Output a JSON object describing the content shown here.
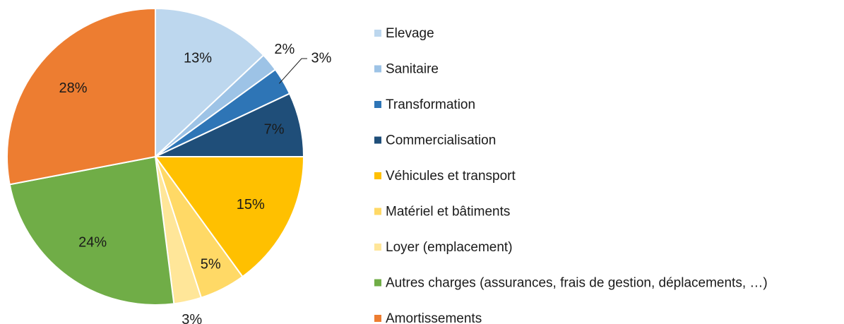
{
  "chart_data": {
    "type": "pie",
    "categories": [
      "Elevage",
      "Sanitaire",
      "Transformation",
      "Commercialisation",
      "Véhicules et transport",
      "Matériel et bâtiments",
      "Loyer (emplacement)",
      "Autres charges (assurances, frais de gestion, déplacements, …)",
      "Amortissements"
    ],
    "values": [
      13,
      2,
      3,
      7,
      15,
      5,
      3,
      24,
      28
    ],
    "value_labels": [
      "13%",
      "2%",
      "3%",
      "7%",
      "15%",
      "5%",
      "3%",
      "24%",
      "28%"
    ],
    "colors": [
      "#bdd7ee",
      "#9dc3e6",
      "#2e75b6",
      "#1f4e79",
      "#ffc000",
      "#ffd966",
      "#ffe699",
      "#70ad47",
      "#ed7d31"
    ],
    "legend": "right"
  }
}
